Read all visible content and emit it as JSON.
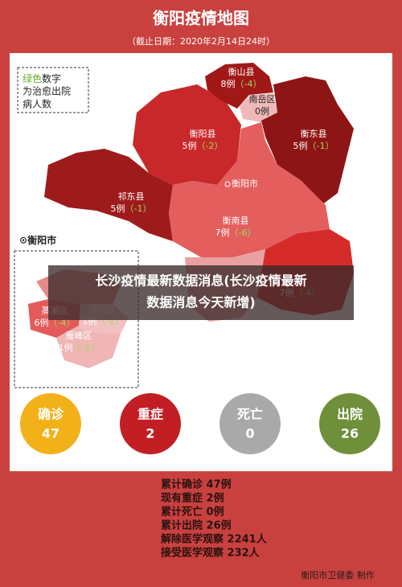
{
  "header": {
    "title": "衡阳疫情地图",
    "subtitle": "（截止日期：2020年2月14日24时）"
  },
  "legend": {
    "green": "绿色",
    "rest": [
      "数字",
      "为治愈出院",
      "病人数"
    ]
  },
  "regions": [
    {
      "name": "衡山县",
      "cases": "8例",
      "cured": "（-4）"
    },
    {
      "name": "南岳区",
      "cases": "0例"
    },
    {
      "name": "衡阳县",
      "cases": "5例",
      "cured": "（-2）"
    },
    {
      "name": "衡东县",
      "cases": "5例",
      "cured": "（-1）"
    },
    {
      "name": "祁东县",
      "cases": "5例",
      "cured": "（-1）"
    },
    {
      "name": "衡南县",
      "cases": "7例",
      "cured": "（-6）"
    },
    {
      "cases": "7例",
      "cured": "（-4）"
    }
  ],
  "city_label": "衡阳市",
  "inset": {
    "title": "衡阳市",
    "regions": [
      {
        "name": "蒸湘区",
        "cases": "6例",
        "cured": "（-4）"
      },
      {
        "name": "珠晖区",
        "cases": "1例",
        "cured": "（-1）"
      },
      {
        "name": "雁峰区",
        "cases": "1例",
        "cured": "（-1）"
      }
    ]
  },
  "banner": [
    "长沙疫情最新数据消息(长沙疫情最新",
    "数据消息今天新增)"
  ],
  "summary": [
    {
      "label": "确诊",
      "value": "47"
    },
    {
      "label": "重症",
      "value": "2"
    },
    {
      "label": "死亡",
      "value": "0"
    },
    {
      "label": "出院",
      "value": "26"
    }
  ],
  "stats": [
    "累计确诊 47例",
    "现有重症   2例",
    "累计死亡   0例",
    "累计出院 26例",
    "解除医学观察 2241人",
    "接受医学观察   232人"
  ],
  "footer": "衡阳市卫健委 制作"
}
